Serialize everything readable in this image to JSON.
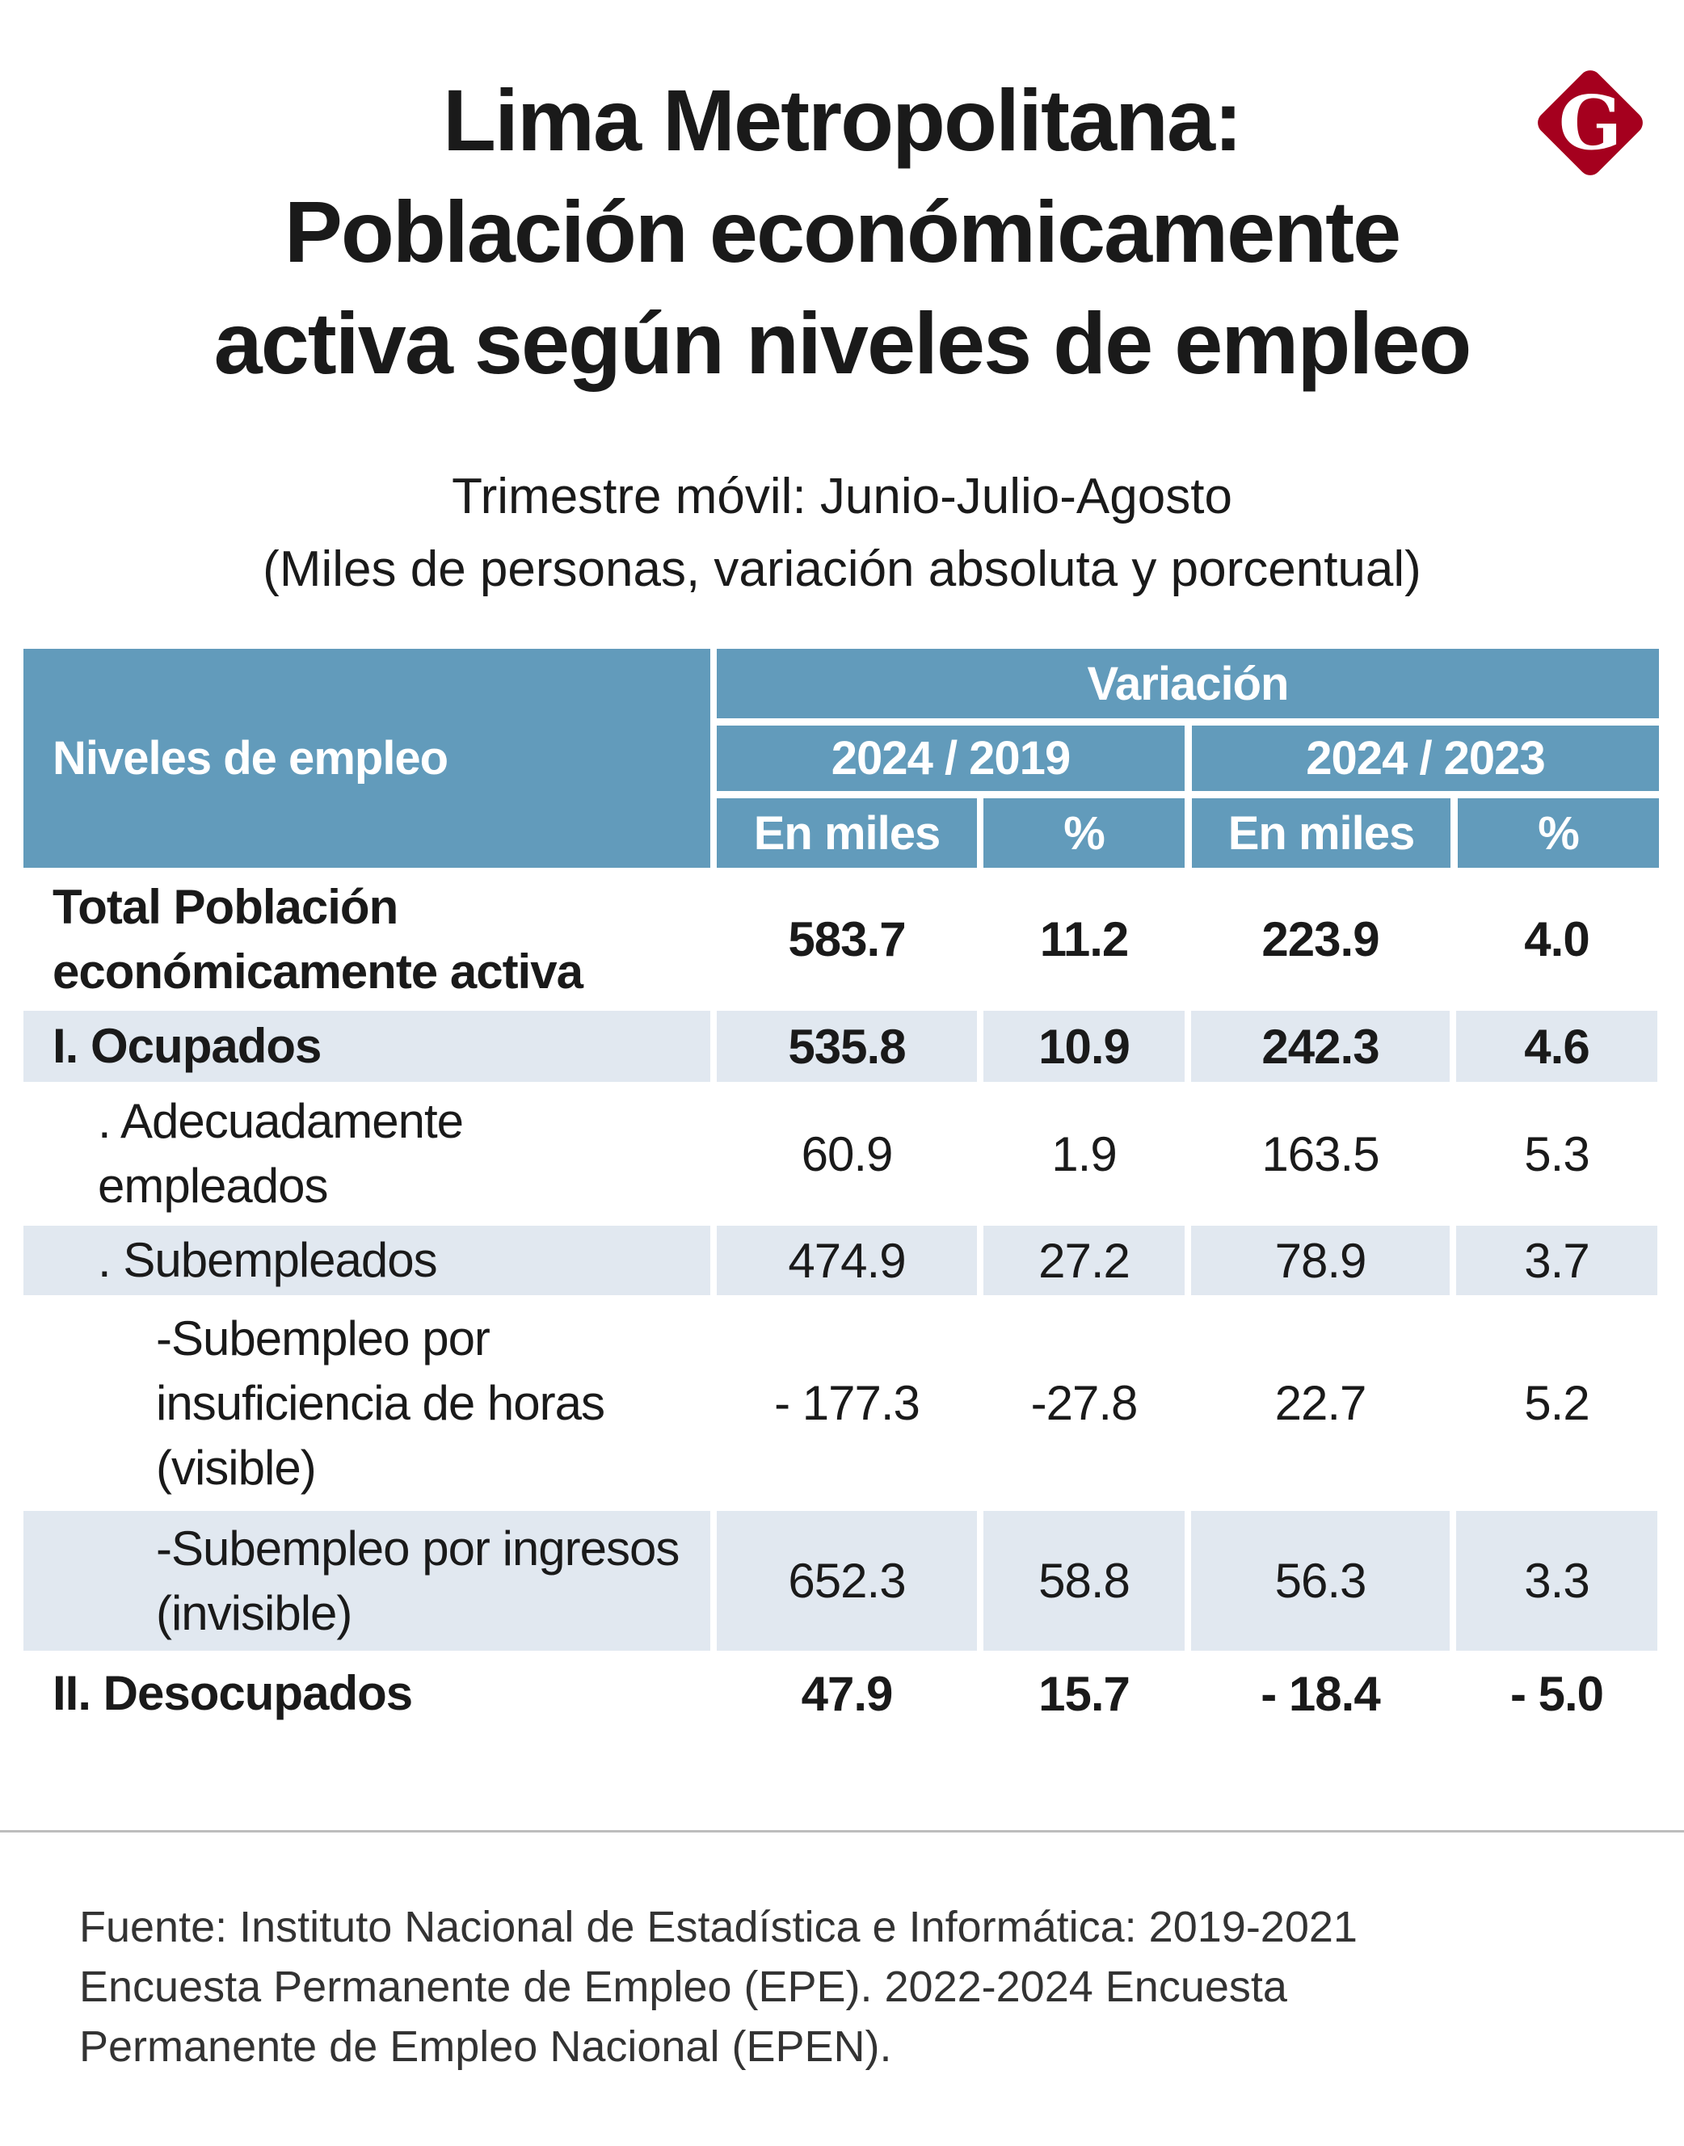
{
  "title": {
    "lines": [
      "Lima Metropolitana:",
      "Población económicamente",
      "activa según niveles de empleo"
    ]
  },
  "logo": {
    "letter": "G",
    "color": "#a5001e"
  },
  "subtitle": {
    "lines": [
      "Trimestre móvil: Junio-Julio-Agosto",
      "(Miles de personas, variación absoluta y porcentual)"
    ]
  },
  "table": {
    "header": {
      "row_label": "Niveles de empleo",
      "group": "Variación",
      "periods": [
        "2024 / 2019",
        "2024 / 2023"
      ],
      "subcols": [
        "En miles",
        "%",
        "En miles",
        "%"
      ]
    },
    "rows": [
      {
        "label": "Total Población económicamente activa",
        "values": [
          "583.7",
          "11.2",
          "223.9",
          "4.0"
        ]
      },
      {
        "label": "I. Ocupados",
        "values": [
          "535.8",
          "10.9",
          "242.3",
          "4.6"
        ]
      },
      {
        "label": ". Adecuadamente empleados",
        "values": [
          "60.9",
          "1.9",
          "163.5",
          "5.3"
        ]
      },
      {
        "label": ". Subempleados",
        "values": [
          "474.9",
          "27.2",
          "78.9",
          "3.7"
        ]
      },
      {
        "label": "-Subempleo por insuficiencia de horas (visible)",
        "values": [
          "- 177.3",
          "-27.8",
          "22.7",
          "5.2"
        ]
      },
      {
        "label": "-Subempleo por ingresos (invisible)",
        "values": [
          "652.3",
          "58.8",
          "56.3",
          "3.3"
        ]
      },
      {
        "label": "II. Desocupados",
        "values": [
          "47.9",
          "15.7",
          "- 18.4",
          "- 5.0"
        ]
      }
    ],
    "colors": {
      "header": "#629bbb",
      "shade": "#e1e8f0"
    }
  },
  "footer": {
    "lines": [
      "Fuente: Instituto Nacional de Estadística e Informática: 2019-2021",
      "Encuesta Permanente de Empleo (EPE). 2022-2024 Encuesta",
      "Permanente de Empleo Nacional (EPEN)."
    ]
  }
}
